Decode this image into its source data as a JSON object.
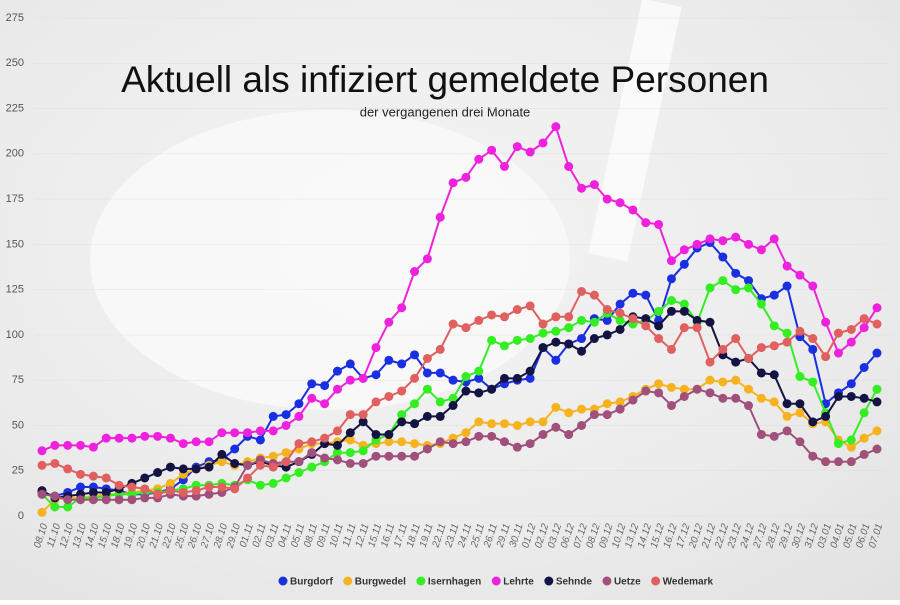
{
  "chart_data": {
    "type": "line",
    "title": "Aktuell als infiziert gemeldete Personen",
    "subtitle": "der vergangenen drei Monate",
    "categories": [
      "08.10",
      "11.10",
      "12.10",
      "13.10",
      "14.10",
      "15.10",
      "18.10",
      "19.10",
      "20.10",
      "21.10",
      "22.10",
      "25.10",
      "26.10",
      "27.10",
      "28.10",
      "29.10",
      "01.11",
      "02.11",
      "03.11",
      "04.11",
      "05.11",
      "08.11",
      "09.11",
      "10.11",
      "11.11",
      "12.11",
      "15.11",
      "16.11",
      "17.11",
      "18.11",
      "19.11",
      "22.11",
      "23.11",
      "24.11",
      "25.11",
      "26.11",
      "29.11",
      "30.11",
      "01.12",
      "02.12",
      "03.12",
      "06.12",
      "07.12",
      "08.12",
      "09.12",
      "10.12",
      "13.12",
      "14.12",
      "15.12",
      "16.12",
      "17.12",
      "20.12",
      "21.12",
      "22.12",
      "23.12",
      "24.12",
      "27.12",
      "28.12",
      "29.12",
      "30.12",
      "31.12",
      "03.01",
      "04.01",
      "05.01",
      "06.01",
      "07.01"
    ],
    "series": [
      {
        "name": "Burgdorf",
        "color": "#1a2fe0",
        "values": [
          13,
          11,
          13,
          16,
          16,
          15,
          14,
          12,
          12,
          13,
          15,
          20,
          27,
          30,
          31,
          37,
          44,
          42,
          55,
          56,
          62,
          73,
          72,
          80,
          84,
          76,
          78,
          86,
          84,
          89,
          79,
          79,
          75,
          74,
          76,
          70,
          73,
          75,
          76,
          93,
          86,
          95,
          98,
          109,
          108,
          117,
          123,
          122,
          108,
          131,
          139,
          148,
          151,
          143,
          134,
          130,
          120,
          122,
          127,
          99,
          92,
          62,
          68,
          73,
          82,
          90
        ]
      },
      {
        "name": "Burgwedel",
        "color": "#f5b320",
        "values": [
          2,
          9,
          10,
          10,
          11,
          12,
          12,
          13,
          14,
          15,
          18,
          23,
          26,
          28,
          30,
          28,
          30,
          32,
          33,
          35,
          37,
          40,
          40,
          41,
          42,
          39,
          40,
          41,
          41,
          40,
          39,
          40,
          43,
          46,
          52,
          51,
          51,
          50,
          52,
          52,
          60,
          57,
          59,
          59,
          62,
          63,
          66,
          70,
          73,
          71,
          70,
          70,
          75,
          74,
          75,
          70,
          65,
          63,
          55,
          57,
          51,
          52,
          42,
          38,
          43,
          47
        ]
      },
      {
        "name": "Isernhagen",
        "color": "#33ee22",
        "values": [
          12,
          5,
          5,
          10,
          10,
          11,
          12,
          12,
          13,
          13,
          14,
          15,
          17,
          17,
          18,
          17,
          20,
          17,
          18,
          21,
          24,
          27,
          30,
          35,
          35,
          36,
          42,
          45,
          56,
          62,
          70,
          63,
          65,
          77,
          80,
          97,
          94,
          97,
          98,
          101,
          102,
          104,
          108,
          107,
          112,
          108,
          106,
          108,
          113,
          119,
          117,
          107,
          126,
          130,
          125,
          126,
          117,
          105,
          101,
          77,
          74,
          57,
          40,
          42,
          57,
          70
        ]
      },
      {
        "name": "Lehrte",
        "color": "#ee22dd",
        "values": [
          36,
          39,
          39,
          39,
          38,
          43,
          43,
          43,
          44,
          44,
          43,
          40,
          41,
          41,
          46,
          46,
          46,
          47,
          47,
          50,
          55,
          65,
          62,
          70,
          75,
          76,
          93,
          107,
          115,
          135,
          142,
          165,
          184,
          187,
          197,
          202,
          193,
          204,
          201,
          206,
          215,
          193,
          181,
          183,
          175,
          173,
          169,
          162,
          161,
          141,
          147,
          150,
          153,
          152,
          154,
          150,
          147,
          153,
          138,
          133,
          127,
          107,
          90,
          96,
          104,
          115
        ]
      },
      {
        "name": "Sehnde",
        "color": "#141444",
        "values": [
          14,
          10,
          11,
          12,
          13,
          13,
          15,
          18,
          21,
          24,
          27,
          26,
          26,
          27,
          34,
          29,
          28,
          30,
          28,
          27,
          30,
          34,
          40,
          39,
          46,
          52,
          45,
          45,
          52,
          51,
          55,
          55,
          61,
          69,
          68,
          70,
          76,
          76,
          80,
          93,
          96,
          95,
          91,
          98,
          100,
          103,
          110,
          109,
          105,
          113,
          113,
          108,
          107,
          89,
          85,
          87,
          79,
          78,
          62,
          62,
          52,
          55,
          66,
          66,
          65,
          63
        ]
      },
      {
        "name": "Uetze",
        "color": "#a0507a",
        "values": [
          12,
          11,
          9,
          9,
          9,
          9,
          9,
          9,
          10,
          10,
          12,
          11,
          11,
          12,
          13,
          16,
          28,
          31,
          29,
          30,
          30,
          35,
          32,
          31,
          29,
          29,
          33,
          33,
          33,
          33,
          37,
          41,
          40,
          41,
          44,
          44,
          41,
          38,
          40,
          45,
          49,
          45,
          50,
          56,
          56,
          59,
          64,
          69,
          68,
          61,
          66,
          70,
          68,
          65,
          65,
          61,
          45,
          44,
          47,
          41,
          33,
          30,
          30,
          30,
          34,
          37
        ]
      },
      {
        "name": "Wedemark",
        "color": "#e06060",
        "values": [
          28,
          29,
          26,
          23,
          22,
          21,
          17,
          16,
          15,
          12,
          14,
          13,
          14,
          16,
          16,
          15,
          21,
          28,
          27,
          30,
          40,
          41,
          43,
          47,
          56,
          56,
          63,
          66,
          69,
          76,
          87,
          92,
          106,
          104,
          108,
          111,
          110,
          114,
          116,
          106,
          110,
          110,
          124,
          122,
          114,
          112,
          109,
          105,
          98,
          92,
          104,
          104,
          85,
          92,
          98,
          87,
          93,
          94,
          96,
          102,
          98,
          88,
          101,
          103,
          109,
          106
        ]
      }
    ],
    "ylim": [
      0,
      275
    ],
    "yticks": [
      0,
      25,
      50,
      75,
      100,
      125,
      150,
      175,
      200,
      225,
      250,
      275
    ],
    "grid": true
  }
}
